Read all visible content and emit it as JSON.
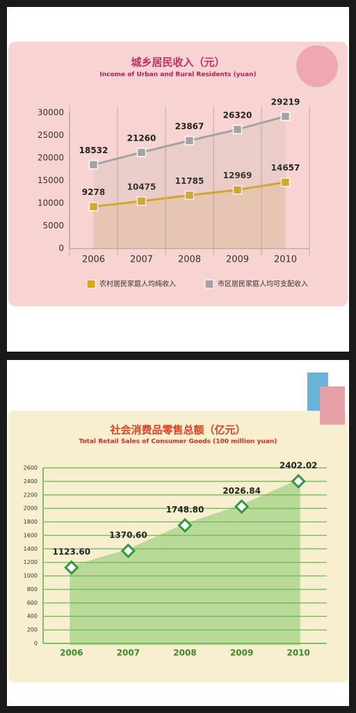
{
  "chart_data": [
    {
      "type": "line",
      "title": "城乡居民收入（元）",
      "subtitle": "Income of Urban and Rural Residents (yuan)",
      "categories": [
        "2006",
        "2007",
        "2008",
        "2009",
        "2010"
      ],
      "series": [
        {
          "name": "农村居民家庭人均纯收入",
          "color": "#d9a91c",
          "values": [
            9278,
            10475,
            11785,
            12969,
            14657
          ]
        },
        {
          "name": "市区居民家庭人均可支配收入",
          "color": "#a3a3a3",
          "values": [
            18532,
            21260,
            23867,
            26320,
            29219
          ]
        }
      ],
      "ylim": [
        0,
        30000
      ],
      "yticks": [
        0,
        5000,
        10000,
        15000,
        20000,
        25000,
        30000
      ],
      "grid": true
    },
    {
      "type": "area",
      "title": "社会消费品零售总额（亿元）",
      "subtitle": "Total Retail Sales of Consumer Goods (100 million yuan)",
      "categories": [
        "2006",
        "2007",
        "2008",
        "2009",
        "2010"
      ],
      "values": [
        1123.6,
        1370.6,
        1748.8,
        2026.84,
        2402.02
      ],
      "value_labels": [
        "1123.60",
        "1370.60",
        "1748.80",
        "2026.84",
        "2402.02"
      ],
      "color": "#6cbf55",
      "ylim": [
        0,
        2600
      ],
      "yticks": [
        0,
        200,
        400,
        600,
        800,
        1000,
        1200,
        1400,
        1600,
        1800,
        2000,
        2200,
        2400,
        2600
      ],
      "grid": true
    }
  ]
}
